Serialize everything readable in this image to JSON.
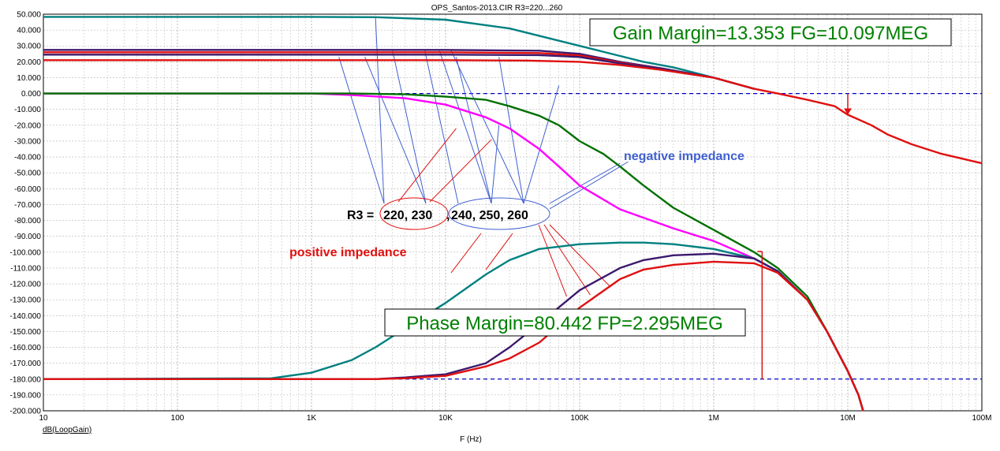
{
  "chart_data": {
    "type": "line",
    "title": "OPS_Santos-2013.CIR R3=220...260",
    "xlabel": "F (Hz)",
    "ylabel": "dB(LoopGain)",
    "xscale": "log",
    "xlim": [
      10,
      100000000
    ],
    "ylim": [
      -200,
      50
    ],
    "ytick_step": 10,
    "x_tick_labels": [
      {
        "x": 10,
        "label": "10"
      },
      {
        "x": 100,
        "label": "100"
      },
      {
        "x": 1000,
        "label": "1K"
      },
      {
        "x": 10000,
        "label": "10K"
      },
      {
        "x": 100000,
        "label": "100K"
      },
      {
        "x": 1000000,
        "label": "1M"
      },
      {
        "x": 10000000,
        "label": "10M"
      },
      {
        "x": 100000000,
        "label": "100M"
      }
    ],
    "reference_lines": [
      0,
      -180
    ],
    "grid": true,
    "colors": {
      "teal": "#008080",
      "purple": "#3c1a6e",
      "red": "#e01010",
      "green": "#007000",
      "magenta": "#ff00ff",
      "annotation_red": "#e01010",
      "annotation_blue": "#4060d0",
      "box_text": "#008000",
      "ref_dash": "#0000c0"
    },
    "gain_series": [
      {
        "color": "teal",
        "points": [
          [
            10,
            48.3
          ],
          [
            1000,
            48.3
          ],
          [
            3000,
            48.1
          ],
          [
            10000,
            46.5
          ],
          [
            30000,
            41
          ],
          [
            100000,
            30
          ],
          [
            300000,
            20
          ],
          [
            500000,
            16.5
          ],
          [
            1000000,
            10
          ],
          [
            2000000,
            3
          ]
        ]
      },
      {
        "color": "purple",
        "points": [
          [
            10,
            27.5
          ],
          [
            10000,
            27.5
          ],
          [
            50000,
            27
          ],
          [
            100000,
            25
          ],
          [
            200000,
            20
          ],
          [
            400000,
            16
          ],
          [
            1000000,
            10
          ],
          [
            2000000,
            3
          ]
        ]
      },
      {
        "color": "red",
        "points": [
          [
            10,
            26
          ],
          [
            10000,
            26
          ],
          [
            50000,
            25.5
          ],
          [
            100000,
            24
          ],
          [
            200000,
            19.5
          ],
          [
            400000,
            15.5
          ],
          [
            1000000,
            10
          ],
          [
            2000000,
            3
          ]
        ]
      },
      {
        "color": "purple",
        "points": [
          [
            10,
            24.5
          ],
          [
            10000,
            24.5
          ],
          [
            50000,
            24.2
          ],
          [
            100000,
            23
          ],
          [
            200000,
            19
          ],
          [
            400000,
            15.5
          ],
          [
            1000000,
            10
          ],
          [
            2000000,
            3
          ]
        ]
      },
      {
        "color": "red",
        "points": [
          [
            10,
            21
          ],
          [
            10000,
            21
          ],
          [
            40000,
            20.8
          ],
          [
            100000,
            20
          ],
          [
            200000,
            18
          ],
          [
            400000,
            15
          ],
          [
            1000000,
            10
          ],
          [
            2000000,
            3
          ],
          [
            3000000,
            0
          ],
          [
            5000000,
            -4
          ],
          [
            8000000,
            -8
          ],
          [
            10000000,
            -13.353
          ],
          [
            15000000,
            -20
          ],
          [
            20000000,
            -26
          ],
          [
            30000000,
            -32
          ],
          [
            50000000,
            -38
          ],
          [
            100000000,
            -44
          ]
        ]
      }
    ],
    "phase_series": [
      {
        "color": "magenta",
        "points": [
          [
            10,
            0
          ],
          [
            1000,
            0
          ],
          [
            2000,
            -1
          ],
          [
            5000,
            -3
          ],
          [
            10000,
            -7
          ],
          [
            20000,
            -15
          ],
          [
            30000,
            -22
          ],
          [
            50000,
            -35
          ],
          [
            70000,
            -46
          ],
          [
            100000,
            -58
          ],
          [
            200000,
            -73
          ],
          [
            500000,
            -85
          ],
          [
            1000000,
            -93
          ],
          [
            2000000,
            -104
          ],
          [
            3000000,
            -112
          ],
          [
            5000000,
            -130
          ],
          [
            7000000,
            -150
          ],
          [
            10000000,
            -175
          ],
          [
            12000000,
            -190
          ],
          [
            13000000,
            -200
          ]
        ]
      },
      {
        "color": "green",
        "points": [
          [
            10,
            0
          ],
          [
            2000,
            0
          ],
          [
            5000,
            -0.5
          ],
          [
            10000,
            -2
          ],
          [
            20000,
            -4
          ],
          [
            30000,
            -8
          ],
          [
            50000,
            -14
          ],
          [
            70000,
            -20
          ],
          [
            100000,
            -30
          ],
          [
            150000,
            -38
          ],
          [
            200000,
            -46
          ],
          [
            300000,
            -58
          ],
          [
            500000,
            -72
          ],
          [
            1000000,
            -86
          ],
          [
            2000000,
            -100
          ],
          [
            3000000,
            -110
          ],
          [
            5000000,
            -128
          ],
          [
            7000000,
            -150
          ],
          [
            10000000,
            -175
          ],
          [
            12000000,
            -190
          ],
          [
            13000000,
            -200
          ]
        ]
      },
      {
        "color": "teal",
        "points": [
          [
            10,
            -180
          ],
          [
            500,
            -179.5
          ],
          [
            1000,
            -176
          ],
          [
            2000,
            -168
          ],
          [
            3000,
            -160
          ],
          [
            5000,
            -148
          ],
          [
            10000,
            -132
          ],
          [
            20000,
            -114
          ],
          [
            30000,
            -105
          ],
          [
            50000,
            -98
          ],
          [
            100000,
            -95
          ],
          [
            200000,
            -94
          ],
          [
            300000,
            -94
          ],
          [
            500000,
            -95
          ],
          [
            1000000,
            -98
          ],
          [
            2000000,
            -104
          ],
          [
            3000000,
            -112
          ],
          [
            5000000,
            -130
          ],
          [
            7000000,
            -150
          ],
          [
            10000000,
            -175
          ],
          [
            12000000,
            -190
          ],
          [
            13000000,
            -200
          ]
        ]
      },
      {
        "color": "purple",
        "points": [
          [
            10,
            -180
          ],
          [
            3000,
            -180
          ],
          [
            5000,
            -179
          ],
          [
            10000,
            -177
          ],
          [
            20000,
            -170
          ],
          [
            30000,
            -160
          ],
          [
            50000,
            -145
          ],
          [
            100000,
            -124
          ],
          [
            200000,
            -110
          ],
          [
            300000,
            -105
          ],
          [
            500000,
            -102
          ],
          [
            1000000,
            -101
          ],
          [
            2000000,
            -104
          ],
          [
            3000000,
            -112
          ],
          [
            5000000,
            -130
          ],
          [
            7000000,
            -150
          ],
          [
            10000000,
            -175
          ],
          [
            12000000,
            -190
          ],
          [
            13000000,
            -200
          ]
        ]
      },
      {
        "color": "red",
        "points": [
          [
            10,
            -180
          ],
          [
            3000,
            -180
          ],
          [
            5000,
            -179.5
          ],
          [
            10000,
            -178
          ],
          [
            20000,
            -172
          ],
          [
            30000,
            -167
          ],
          [
            50000,
            -157
          ],
          [
            100000,
            -135
          ],
          [
            200000,
            -117
          ],
          [
            300000,
            -111
          ],
          [
            500000,
            -108
          ],
          [
            1000000,
            -106
          ],
          [
            2000000,
            -107
          ],
          [
            3000000,
            -113
          ],
          [
            5000000,
            -130
          ],
          [
            7000000,
            -150
          ],
          [
            10000000,
            -175
          ],
          [
            12000000,
            -190
          ],
          [
            13000000,
            -200
          ]
        ]
      }
    ],
    "markers": [
      {
        "name": "gain-margin-marker",
        "x": 10000000,
        "y": -13.353
      },
      {
        "name": "phase-margin-marker",
        "x": 2295000,
        "y": -99.558
      }
    ],
    "gain_margin_label": "Gain Margin=13.353 FG=10.097MEG",
    "phase_margin_label": "Phase Margin=80.442 FP=2.295MEG",
    "r3_label": "R3 =",
    "r3_values_positive": "220, 230",
    "r3_values_separator": ",",
    "r3_values_negative": "240, 250, 260",
    "negative_label": "negative impedance",
    "positive_label": "positive impedance"
  }
}
